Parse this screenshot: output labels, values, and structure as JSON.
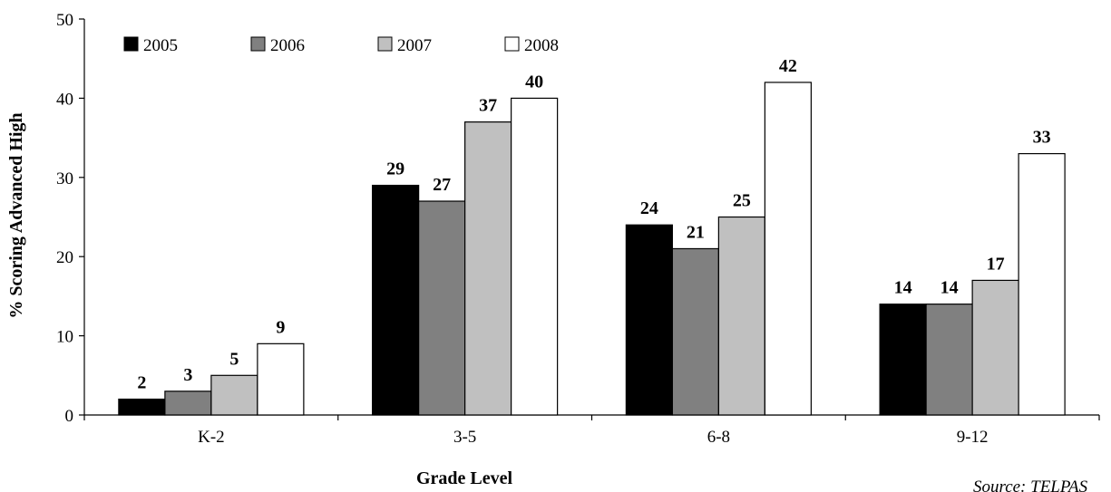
{
  "chart_data": {
    "type": "bar",
    "categories": [
      "K-2",
      "3-5",
      "6-8",
      "9-12"
    ],
    "series": [
      {
        "name": "2005",
        "color": "#000000",
        "values": [
          2,
          29,
          24,
          14
        ]
      },
      {
        "name": "2006",
        "color": "#808080",
        "values": [
          3,
          27,
          21,
          14
        ]
      },
      {
        "name": "2007",
        "color": "#c0c0c0",
        "values": [
          5,
          37,
          25,
          17
        ]
      },
      {
        "name": "2008",
        "color": "#ffffff",
        "values": [
          9,
          40,
          42,
          33
        ]
      }
    ],
    "xlabel": "Grade Level",
    "ylabel": "% Scoring Advanced High",
    "ylim": [
      0,
      50
    ],
    "yticks": [
      0,
      10,
      20,
      30,
      40,
      50
    ],
    "grid": false,
    "legend_position": "top-left",
    "data_labels": true,
    "source_note": "Source: TELPAS"
  }
}
